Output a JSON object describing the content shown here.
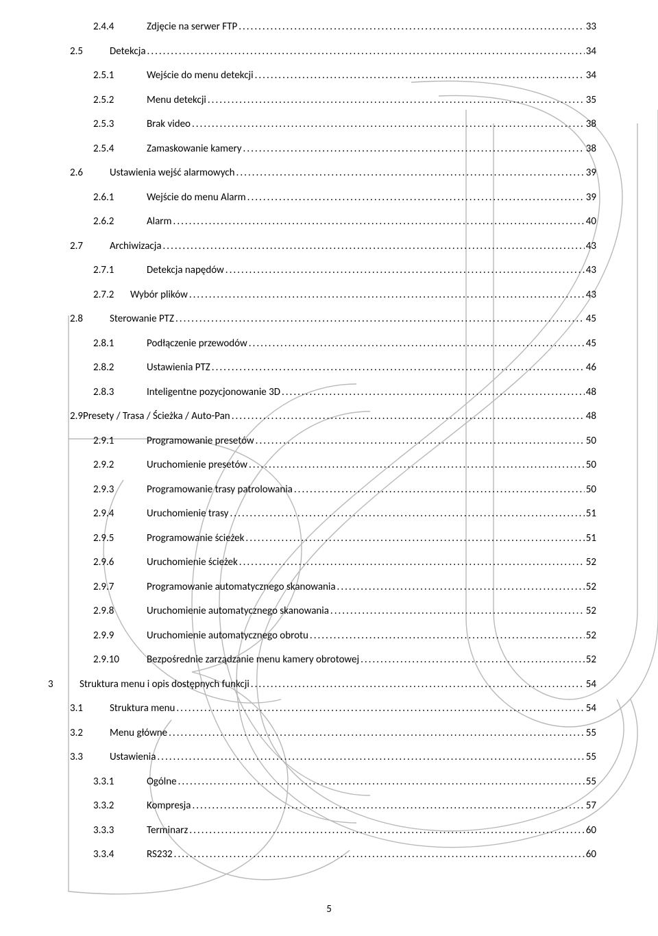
{
  "toc_entries": [
    {
      "indent": 2,
      "num": "2.4.4",
      "title": "Zdjęcie na serwer FTP",
      "page": "33",
      "numClass": "num-w3"
    },
    {
      "indent": 1,
      "num": "2.5",
      "title": "Detekcja",
      "page": "34",
      "numClass": "num-w2"
    },
    {
      "indent": 2,
      "num": "2.5.1",
      "title": "Wejście do menu detekcji",
      "page": "34",
      "numClass": "num-w3"
    },
    {
      "indent": 2,
      "num": "2.5.2",
      "title": "Menu detekcji",
      "page": "35",
      "numClass": "num-w3"
    },
    {
      "indent": 2,
      "num": "2.5.3",
      "title": "Brak video",
      "page": "38",
      "numClass": "num-w3"
    },
    {
      "indent": 2,
      "num": "2.5.4",
      "title": "Zamaskowanie kamery",
      "page": "38",
      "numClass": "num-w3"
    },
    {
      "indent": 1,
      "num": "2.6",
      "title": "Ustawienia wejść alarmowych",
      "page": "39",
      "numClass": "num-w2"
    },
    {
      "indent": 2,
      "num": "2.6.1",
      "title": "Wejście do menu Alarm",
      "page": "39",
      "numClass": "num-w3"
    },
    {
      "indent": 2,
      "num": "2.6.2",
      "title": "Alarm",
      "page": "40",
      "numClass": "num-w3"
    },
    {
      "indent": 1,
      "num": "2.7",
      "title": "Archiwizacja",
      "page": "43",
      "numClass": "num-w2"
    },
    {
      "indent": 2,
      "num": "2.7.1",
      "title": "Detekcja napędów",
      "page": "43",
      "numClass": "num-w3"
    },
    {
      "indent": 2,
      "num": "2.7.2",
      "title": " Wybór plików",
      "page": "43",
      "numClass": "num-w3b"
    },
    {
      "indent": 1,
      "num": "2.8",
      "title": "Sterowanie PTZ",
      "page": "45",
      "numClass": "num-w2"
    },
    {
      "indent": 2,
      "num": "2.8.1",
      "title": "Podłączenie przewodów",
      "page": "45",
      "numClass": "num-w3"
    },
    {
      "indent": 2,
      "num": "2.8.2",
      "title": "Ustawienia PTZ",
      "page": "46",
      "numClass": "num-w3"
    },
    {
      "indent": 2,
      "num": "2.8.3",
      "title": "Inteligentne pozycjonowanie 3D",
      "page": "48",
      "numClass": "num-w3"
    },
    {
      "indent": 1,
      "num": "2.9",
      "title": " Presety / Trasa / Ścieżka / Auto-Pan",
      "page": "48",
      "numClass": ""
    },
    {
      "indent": 2,
      "num": "2.9.1",
      "title": "Programowanie presetów",
      "page": "50",
      "numClass": "num-w3"
    },
    {
      "indent": 2,
      "num": "2.9.2",
      "title": "Uruchomienie presetów",
      "page": "50",
      "numClass": "num-w3"
    },
    {
      "indent": 2,
      "num": "2.9.3",
      "title": "Programowanie trasy patrolowania",
      "page": "50",
      "numClass": "num-w3"
    },
    {
      "indent": 2,
      "num": "2.9.4",
      "title": "Uruchomienie trasy",
      "page": "51",
      "numClass": "num-w3"
    },
    {
      "indent": 2,
      "num": "2.9.5",
      "title": "Programowanie ścieżek",
      "page": "51",
      "numClass": "num-w3"
    },
    {
      "indent": 2,
      "num": "2.9.6",
      "title": "Uruchomienie ścieżek",
      "page": "52",
      "numClass": "num-w3"
    },
    {
      "indent": 2,
      "num": "2.9.7",
      "title": "Programowanie automatycznego skanowania",
      "page": "52",
      "numClass": "num-w3"
    },
    {
      "indent": 2,
      "num": "2.9.8",
      "title": "Uruchomienie automatycznego skanowania",
      "page": "52",
      "numClass": "num-w3"
    },
    {
      "indent": 2,
      "num": "2.9.9",
      "title": "Uruchomienie automatycznego obrotu",
      "page": "52",
      "numClass": "num-w3"
    },
    {
      "indent": 2,
      "num": "2.9.10",
      "title": "Bezpośrednie zarządzanie menu kamery obrotowej",
      "page": "52",
      "numClass": "num-w3"
    },
    {
      "indent": 0,
      "num": "3",
      "title": "Struktura menu i opis dostępnych funkcji",
      "page": "54",
      "numClass": "num-w1"
    },
    {
      "indent": 1,
      "num": "3.1",
      "title": "Struktura menu",
      "page": "54",
      "numClass": "num-w2"
    },
    {
      "indent": 1,
      "num": "3.2",
      "title": "Menu główne",
      "page": "55",
      "numClass": "num-w2"
    },
    {
      "indent": 1,
      "num": "3.3",
      "title": "Ustawienia",
      "page": "55",
      "numClass": "num-w2"
    },
    {
      "indent": 2,
      "num": "3.3.1",
      "title": "Ogólne",
      "page": "55",
      "numClass": "num-w3"
    },
    {
      "indent": 2,
      "num": "3.3.2",
      "title": "Kompresja",
      "page": "57",
      "numClass": "num-w3"
    },
    {
      "indent": 2,
      "num": "3.3.3",
      "title": "Terminarz",
      "page": "60",
      "numClass": "num-w3"
    },
    {
      "indent": 2,
      "num": "3.3.4",
      "title": "RS232",
      "page": "60",
      "numClass": "num-w3"
    }
  ],
  "footer_page": "5",
  "watermark": {
    "stroke": "#b8b8b8",
    "stroke_width": 1.4
  }
}
